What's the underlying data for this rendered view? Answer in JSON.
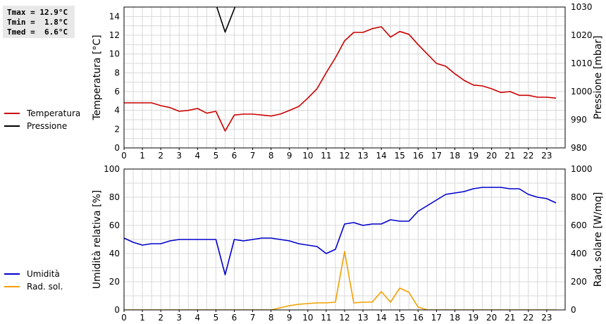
{
  "stats": {
    "tmax": "Tmax = 12.9°C",
    "tmin": "Tmin =  1.8°C",
    "tmed": "Tmed =  6.6°C"
  },
  "chart_data": [
    {
      "type": "line",
      "xlabel": "",
      "ylabel": "Temperatura [°C]",
      "ylabel_right": "Pressione [mbar]",
      "xlim": [
        0,
        24
      ],
      "xticks": [
        "0",
        "1",
        "2",
        "3",
        "4",
        "5",
        "6",
        "7",
        "8",
        "9",
        "10",
        "11",
        "12",
        "13",
        "14",
        "15",
        "16",
        "17",
        "18",
        "19",
        "20",
        "21",
        "22",
        "23"
      ],
      "ylim": [
        0,
        15
      ],
      "yticks": [
        "0",
        "2",
        "4",
        "6",
        "8",
        "10",
        "12",
        "14"
      ],
      "ylim_right": [
        980,
        1030
      ],
      "yticks_right": [
        "980",
        "990",
        "1000",
        "1010",
        "1020",
        "1030"
      ],
      "grid": true,
      "legend_position": "left",
      "series": [
        {
          "name": "Temperatura",
          "axis": "left",
          "color": "#cc0000",
          "x": [
            0,
            0.5,
            1,
            1.5,
            2,
            2.5,
            3,
            3.5,
            4,
            4.5,
            5,
            5.5,
            6,
            6.5,
            7,
            7.5,
            8,
            8.5,
            9,
            9.5,
            10,
            10.5,
            11,
            11.5,
            12,
            12.5,
            13,
            13.5,
            14,
            14.5,
            15,
            15.5,
            16,
            16.5,
            17,
            17.5,
            18,
            18.5,
            19,
            19.5,
            20,
            20.5,
            21,
            21.5,
            22,
            22.5,
            23,
            23.5
          ],
          "y": [
            4.8,
            4.8,
            4.8,
            4.8,
            4.5,
            4.3,
            3.9,
            4.0,
            4.2,
            3.7,
            3.9,
            1.8,
            3.5,
            3.6,
            3.6,
            3.5,
            3.4,
            3.6,
            4.0,
            4.4,
            5.3,
            6.3,
            8.0,
            9.6,
            11.4,
            12.3,
            12.3,
            12.7,
            12.9,
            11.8,
            12.4,
            12.1,
            11.0,
            10.0,
            9.0,
            8.7,
            7.9,
            7.2,
            6.7,
            6.6,
            6.3,
            5.9,
            6.0,
            5.6,
            5.6,
            5.4,
            5.4,
            5.3
          ]
        },
        {
          "name": "Pressione",
          "axis": "right",
          "color": "#000000",
          "x": [
            5.0,
            5.5,
            6.1
          ],
          "y": [
            1031.0,
            1021.1,
            1031.0
          ]
        }
      ]
    },
    {
      "type": "line",
      "xlabel": "",
      "ylabel": "Umidità relativa [%]",
      "ylabel_right": "Rad. solare [W/mq]",
      "xlim": [
        0,
        24
      ],
      "xticks": [
        "0",
        "1",
        "2",
        "3",
        "4",
        "5",
        "6",
        "7",
        "8",
        "9",
        "10",
        "11",
        "12",
        "13",
        "14",
        "15",
        "16",
        "17",
        "18",
        "19",
        "20",
        "21",
        "22",
        "23"
      ],
      "ylim": [
        0,
        100
      ],
      "yticks": [
        "0",
        "20",
        "40",
        "60",
        "80",
        "100"
      ],
      "ylim_right": [
        0,
        1000
      ],
      "yticks_right": [
        "0",
        "200",
        "400",
        "600",
        "800",
        "1000"
      ],
      "grid": true,
      "legend_position": "left",
      "series": [
        {
          "name": "Umidità",
          "axis": "left",
          "color": "#0000cc",
          "x": [
            0,
            0.5,
            1,
            1.5,
            2,
            2.5,
            3,
            3.5,
            4,
            4.5,
            5,
            5.5,
            6,
            6.5,
            7,
            7.5,
            8,
            8.5,
            9,
            9.5,
            10,
            10.5,
            11,
            11.5,
            12,
            12.5,
            13,
            13.5,
            14,
            14.5,
            15,
            15.5,
            16,
            16.5,
            17,
            17.5,
            18,
            18.5,
            19,
            19.5,
            20,
            20.5,
            21,
            21.5,
            22,
            22.5,
            23,
            23.5
          ],
          "y": [
            51,
            48,
            46,
            47,
            47,
            49,
            50,
            50,
            50,
            50,
            50,
            25,
            50,
            49,
            50,
            51,
            51,
            50,
            49,
            47,
            46,
            45,
            40,
            43,
            61,
            62,
            60,
            61,
            61,
            64,
            63,
            63,
            70,
            74,
            78,
            82,
            83,
            84,
            86,
            87,
            87,
            87,
            86,
            86,
            82,
            80,
            79,
            76
          ]
        },
        {
          "name": "Rad. sol.",
          "axis": "right",
          "color": "#f0a000",
          "x": [
            0,
            1,
            2,
            3,
            4,
            5,
            6,
            7,
            8,
            8.5,
            9,
            9.5,
            10,
            10.5,
            11,
            11.5,
            12,
            12.5,
            13,
            13.5,
            14,
            14.5,
            15,
            15.5,
            16,
            16.5,
            17,
            18,
            19,
            20,
            21,
            22,
            23,
            23.5
          ],
          "y": [
            0,
            0,
            0,
            0,
            0,
            0,
            0,
            0,
            0,
            15,
            30,
            40,
            45,
            50,
            50,
            55,
            415,
            50,
            55,
            55,
            130,
            55,
            155,
            125,
            20,
            0,
            0,
            0,
            0,
            0,
            0,
            0,
            0,
            0
          ]
        }
      ]
    }
  ]
}
